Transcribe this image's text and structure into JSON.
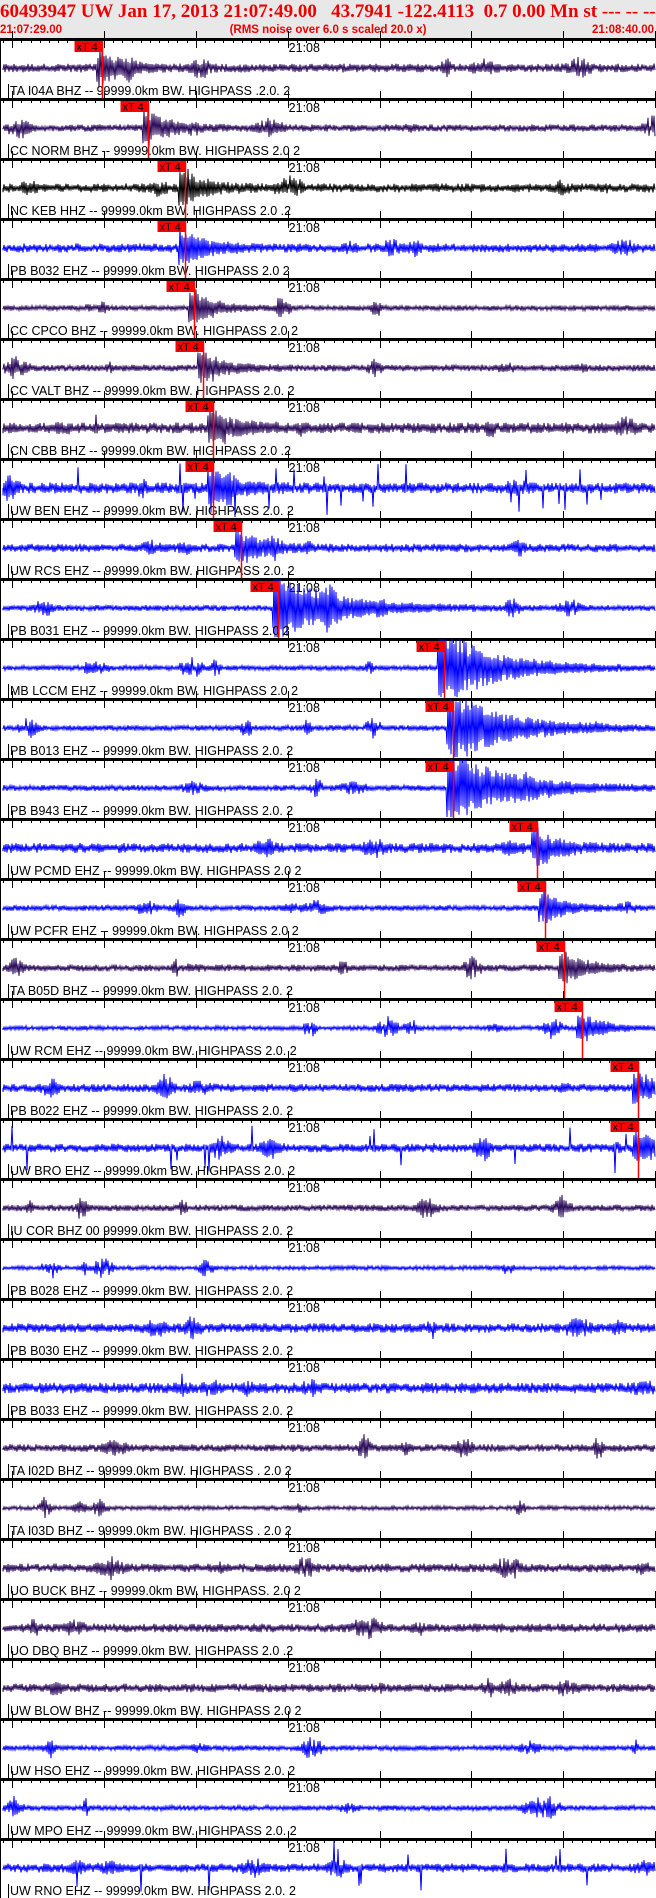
{
  "header": {
    "title": "60493947 UW Jan 17, 2013 21:07:49.00   43.7941 -122.4113  0.7 0.00 Mn st --- -- --  -1",
    "start_time": "21:07:29.00",
    "note": "(RMS noise over 6.0 s scaled 20.0 x)",
    "end_time": "21:08:40.00"
  },
  "colors": {
    "header_bg": "#e8e8e8",
    "header_text": "#ee0000",
    "pick": "#ff0000",
    "purple": "#2a0a5a",
    "blue": "#0000ff",
    "black": "#000000"
  },
  "chart_data": {
    "type": "seismogram",
    "x_range": [
      "21:07:29.00",
      "21:08:40.00"
    ],
    "major_tick_interval_s": 10,
    "minor_tick_interval_s": 1,
    "time_marker_label": "21:08",
    "pick_label": "xT 4",
    "traces": [
      {
        "label": "TA I04A BHZ -- 99999.0km BW. HIGHPASS .2.0. 2",
        "color": "purple",
        "pick": "21:07:39.8"
      },
      {
        "label": "CC NORM BHZ -- 99999.0km BW. HIGHPASS 2.0 2",
        "color": "purple",
        "pick": "21:07:44.8"
      },
      {
        "label": "NC KEB HHZ -- 99999.0km BW. HIGHPASS 2.0 .2",
        "color": "black",
        "pick": "21:07:48.8"
      },
      {
        "label": "PB B032 EHZ -- 99999.0km BW. HIGHPASS 2.0 2",
        "color": "blue",
        "pick": "21:07:48.8"
      },
      {
        "label": "CC CPCO BHZ -- 99999.0km BW. HIGHPASS 2.0 2",
        "color": "purple",
        "pick": "21:07:49.8"
      },
      {
        "label": "CC VALT BHZ -- 99999.0km BW. HIGHPASS 2.0. 2",
        "color": "purple",
        "pick": "21:07:50.8"
      },
      {
        "label": "CN CBB BHZ -- 99999.0km BW. HIGHPASS 2.0 .2",
        "color": "purple",
        "pick": "21:07:51.9"
      },
      {
        "label": "UW BEN EHZ -- 99999.0km BW. HIGHPASS 2.0. 2",
        "color": "blue",
        "pick": "21:07:51.9"
      },
      {
        "label": "UW RCS EHZ -- 99999.0km BW. HIGHPASS 2.0. 2",
        "color": "blue",
        "pick": "21:07:54.9"
      },
      {
        "label": "PB B031 EHZ -- 99999.0km BW. HIGHPASS 2.0 2",
        "color": "blue",
        "pick": "21:07:59.0"
      },
      {
        "label": "MB LCCM EHZ -- 99999.0km BW. HIGHPASS 2.0 2",
        "color": "blue",
        "pick": "21:08:17.0"
      },
      {
        "label": "PB B013 EHZ -- 99999.0km BW. HIGHPASS 2.0. 2",
        "color": "blue",
        "pick": "21:08:18.0"
      },
      {
        "label": "PB B943 EHZ -- 99999.0km BW. HIGHPASS 2.0. 2",
        "color": "blue",
        "pick": "21:08:18.0"
      },
      {
        "label": "UW PCMD EHZ -- 99999.0km BW. HIGHPASS 2.0 2",
        "color": "blue",
        "pick": "21:08:27.2"
      },
      {
        "label": "UW PCFR EHZ -- 99999.0km BW. HIGHPASS 2.0 2",
        "color": "blue",
        "pick": "21:08:28.0"
      },
      {
        "label": "TA B05D BHZ -- 99999.0km BW. HIGHPASS 2.0. 2",
        "color": "purple",
        "pick": "21:08:30.1"
      },
      {
        "label": "UW RCM EHZ -- 99999.0km BW. HIGHPASS 2.0. 2",
        "color": "blue",
        "pick": "21:08:32.1"
      },
      {
        "label": "PB B022 EHZ -- 99999.0km BW. HIGHPASS 2.0. 2",
        "color": "blue",
        "pick": "21:08:38.2"
      },
      {
        "label": "UW BRO EHZ -- 99999.0km BW. HIGHPASS 2.0. 2",
        "color": "blue",
        "pick": "21:08:38.2"
      },
      {
        "label": "IU COR BHZ 00 99999.0km BW. HIGHPASS 2.0. 2",
        "color": "purple",
        "pick": null
      },
      {
        "label": "PB B028 EHZ -- 99999.0km BW. HIGHPASS 2.0. 2",
        "color": "blue",
        "pick": null
      },
      {
        "label": "PB B030 EHZ -- 99999.0km BW. HIGHPASS 2.0. 2",
        "color": "blue",
        "pick": null
      },
      {
        "label": "PB B033 EHZ -- 99999.0km BW. HIGHPASS 2.0. 2",
        "color": "blue",
        "pick": null
      },
      {
        "label": "TA I02D BHZ -- 99999.0km BW. HIGHPASS . 2.0 2",
        "color": "purple",
        "pick": null
      },
      {
        "label": "TA I03D BHZ -- 99999.0km BW. HIGHPASS . 2.0 2",
        "color": "purple",
        "pick": null
      },
      {
        "label": "UO BUCK BHZ -- 99999.0km BW. HIGHPASS. 2.0 2",
        "color": "purple",
        "pick": null
      },
      {
        "label": "UO DBQ BHZ -- 99999.0km BW. HIGHPASS 2.0 .2",
        "color": "purple",
        "pick": null
      },
      {
        "label": "UW BLOW BHZ -- 99999.0km BW. HIGHPASS 2.0 2",
        "color": "purple",
        "pick": null
      },
      {
        "label": "UW HSO EHZ -- 99999.0km BW. HIGHPASS 2.0. 2",
        "color": "blue",
        "pick": null
      },
      {
        "label": "UW MPO EHZ -- 99999.0km BW. HIGHPASS 2.0. 2",
        "color": "blue",
        "pick": null
      },
      {
        "label": "UW RNO EHZ -- 99999.0km BW. HIGHPASS 2.0. 2",
        "color": "blue",
        "pick": null
      }
    ]
  }
}
